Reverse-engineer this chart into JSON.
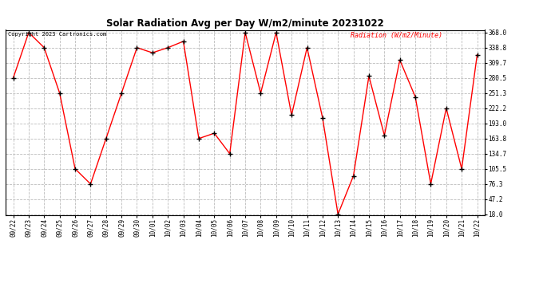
{
  "title": "Solar Radiation Avg per Day W/m2/minute 20231022",
  "copyright": "Copyright 2023 Cartronics.com",
  "legend_label": "Radiation (W/m2/Minute)",
  "dates": [
    "09/22",
    "09/23",
    "09/24",
    "09/25",
    "09/26",
    "09/27",
    "09/28",
    "09/29",
    "09/30",
    "10/01",
    "10/02",
    "10/03",
    "10/04",
    "10/05",
    "10/06",
    "10/07",
    "10/08",
    "10/09",
    "10/10",
    "10/11",
    "10/12",
    "10/13",
    "10/14",
    "10/15",
    "10/16",
    "10/17",
    "10/18",
    "10/19",
    "10/20",
    "10/21",
    "10/22"
  ],
  "values": [
    280.5,
    368.0,
    338.8,
    251.3,
    105.5,
    76.3,
    163.8,
    251.3,
    338.8,
    329.0,
    338.8,
    351.0,
    163.8,
    174.0,
    134.7,
    368.0,
    251.3,
    368.0,
    209.0,
    338.8,
    204.0,
    18.0,
    92.0,
    284.0,
    170.0,
    315.0,
    244.0,
    76.3,
    222.2,
    105.5,
    325.0
  ],
  "y_ticks": [
    18.0,
    47.2,
    76.3,
    105.5,
    134.7,
    163.8,
    193.0,
    222.2,
    251.3,
    280.5,
    309.7,
    338.8,
    368.0
  ],
  "y_min": 18.0,
  "y_max": 368.0,
  "line_color": "red",
  "marker_color": "black",
  "bg_color": "white",
  "grid_color": "#bbbbbb",
  "title_color": "black",
  "copyright_color": "black",
  "legend_color": "red"
}
